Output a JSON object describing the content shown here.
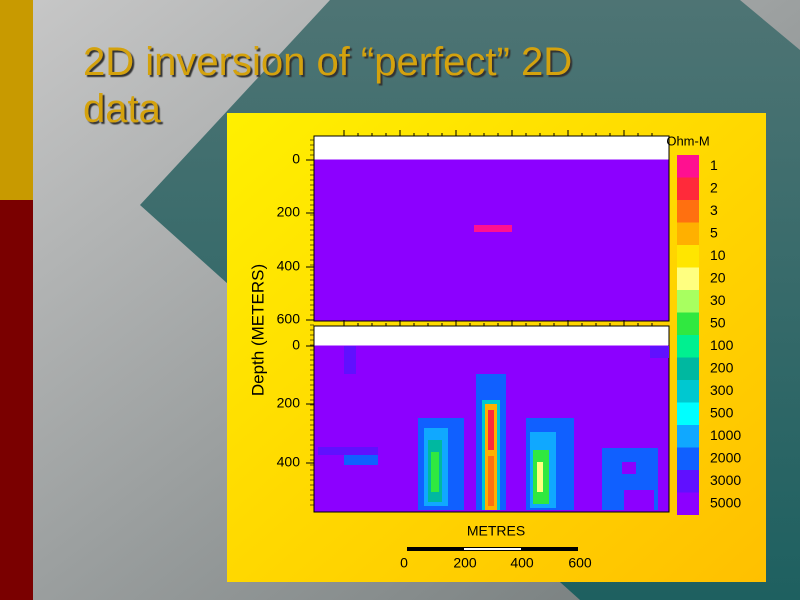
{
  "title_line1": "2D inversion of “perfect” 2D",
  "title_line2": "data",
  "figure": {
    "y_axis_label": "Depth (METERS)",
    "top_panel_ticks": [
      "0",
      "200",
      "400",
      "600"
    ],
    "bottom_panel_ticks": [
      "0",
      "200",
      "400"
    ],
    "x_axis_label": "METRES",
    "scale_ticks": [
      "0",
      "200",
      "400",
      "600"
    ],
    "legend": {
      "title": "Ohm-M",
      "items": [
        {
          "label": "1",
          "color": "#ff1090"
        },
        {
          "label": "2",
          "color": "#ff2a3a"
        },
        {
          "label": "3",
          "color": "#ff7010"
        },
        {
          "label": "5",
          "color": "#ffb000"
        },
        {
          "label": "10",
          "color": "#ffe600"
        },
        {
          "label": "20",
          "color": "#ffff80"
        },
        {
          "label": "30",
          "color": "#a8ff60"
        },
        {
          "label": "50",
          "color": "#30e840"
        },
        {
          "label": "100",
          "color": "#00f090"
        },
        {
          "label": "200",
          "color": "#00b8a0"
        },
        {
          "label": "300",
          "color": "#00c8d0"
        },
        {
          "label": "500",
          "color": "#00ffff"
        },
        {
          "label": "1000",
          "color": "#10a8ff"
        },
        {
          "label": "2000",
          "color": "#1060ff"
        },
        {
          "label": "3000",
          "color": "#6010ff"
        },
        {
          "label": "5000",
          "color": "#8c00ff"
        }
      ]
    }
  }
}
